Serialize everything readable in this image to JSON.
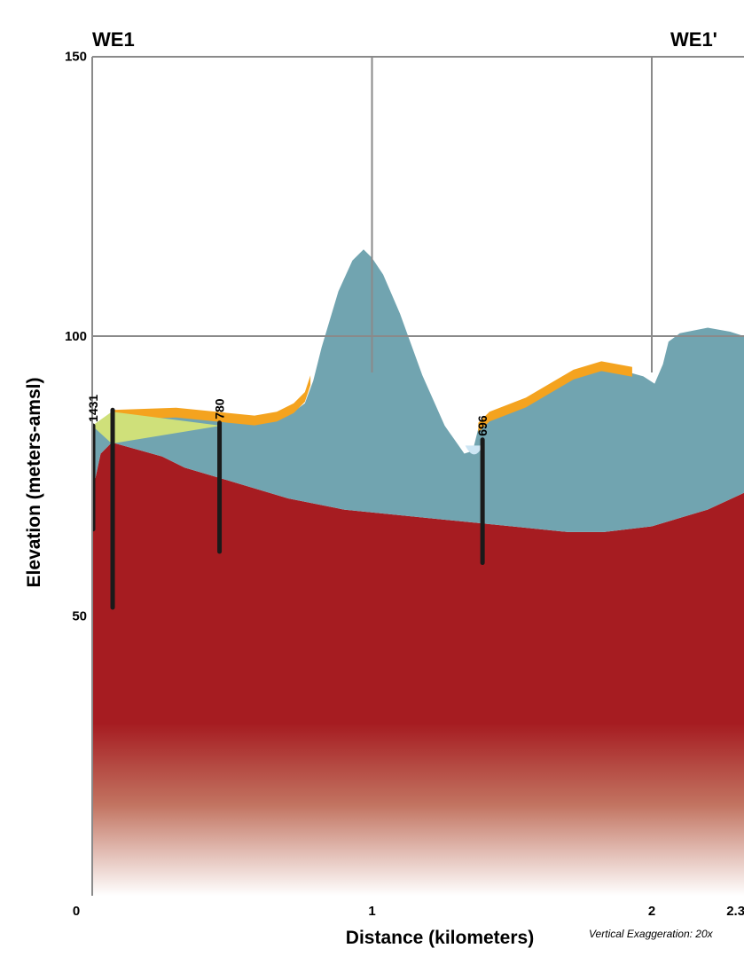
{
  "chart_data": {
    "type": "cross-section",
    "section_start_label": "WE1",
    "section_end_label": "WE1'",
    "xlabel": "Distance (kilometers)",
    "ylabel": "Elevation (meters-amsl)",
    "x_ticks": [
      "0",
      "1",
      "2",
      "2.3"
    ],
    "y_ticks": [
      "150",
      "100",
      "50"
    ],
    "xlim": [
      0,
      2.33
    ],
    "ylim": [
      0,
      150
    ],
    "gridlines_x": [
      1,
      2
    ],
    "gridlines_y": [
      100
    ],
    "vertical_exaggeration": "Vertical Exaggeration: 20x",
    "colors": {
      "top_layer": "#f4a31f",
      "light_green_wedge": "#cfe07a",
      "main_unit": "#71a4b0",
      "basement": "#a61c21",
      "water": "#cde6f4",
      "well": "#1a1a1a",
      "grid": "#8a8a8a"
    },
    "surface": {
      "x": [
        0,
        0.07,
        0.3,
        0.5,
        0.58,
        0.66,
        0.72,
        0.76,
        0.79,
        0.82,
        0.88,
        0.93,
        0.97,
        1.0,
        1.04,
        1.1,
        1.18,
        1.26,
        1.33,
        1.36,
        1.38,
        1.42,
        1.55,
        1.72,
        1.82,
        1.92,
        1.97,
        2.01,
        2.04,
        2.06,
        2.1,
        2.2,
        2.28,
        2.33
      ],
      "y": [
        84,
        85.6,
        86,
        85,
        84.5,
        85.5,
        86.5,
        88,
        92,
        98,
        108,
        113.5,
        115.5,
        114,
        111,
        104,
        93,
        84,
        79,
        79.5,
        83.5,
        85.5,
        88,
        93,
        95,
        93.5,
        92.8,
        91.5,
        95,
        99,
        100.5,
        101.5,
        100.8,
        100
      ]
    },
    "top_layer_surface": {
      "x": [
        0.07,
        0.3,
        0.5,
        0.58,
        0.66,
        0.72,
        0.76,
        0.78,
        1.38,
        1.42,
        1.55,
        1.72,
        1.82,
        1.93
      ],
      "y": [
        86.8,
        87.2,
        86.2,
        85.8,
        86.5,
        88,
        90,
        93,
        84.5,
        86.5,
        89,
        94,
        95.5,
        94.5
      ]
    },
    "wedge": {
      "x": [
        0,
        0.07,
        0.46,
        0.07
      ],
      "y": [
        84,
        86.5,
        84,
        80.8
      ]
    },
    "basement_top": {
      "x": [
        0,
        0.03,
        0.07,
        0.25,
        0.33,
        0.5,
        0.7,
        0.9,
        1.2,
        1.5,
        1.7,
        1.83,
        2.0,
        2.2,
        2.33
      ],
      "y": [
        72,
        79,
        81,
        78.5,
        76.5,
        74,
        71,
        69,
        67.5,
        66,
        65,
        65,
        66,
        69,
        72
      ]
    },
    "wells": [
      {
        "label": "1431",
        "x": 0.0,
        "top": 84,
        "bottom": 65.5
      },
      {
        "label": "",
        "x": 0.073,
        "top": 86.8,
        "bottom": 51.5
      },
      {
        "label": "780",
        "x": 0.455,
        "top": 84.5,
        "bottom": 61.5
      },
      {
        "label": "696",
        "x": 1.395,
        "top": 81.5,
        "bottom": 59.5
      }
    ]
  }
}
